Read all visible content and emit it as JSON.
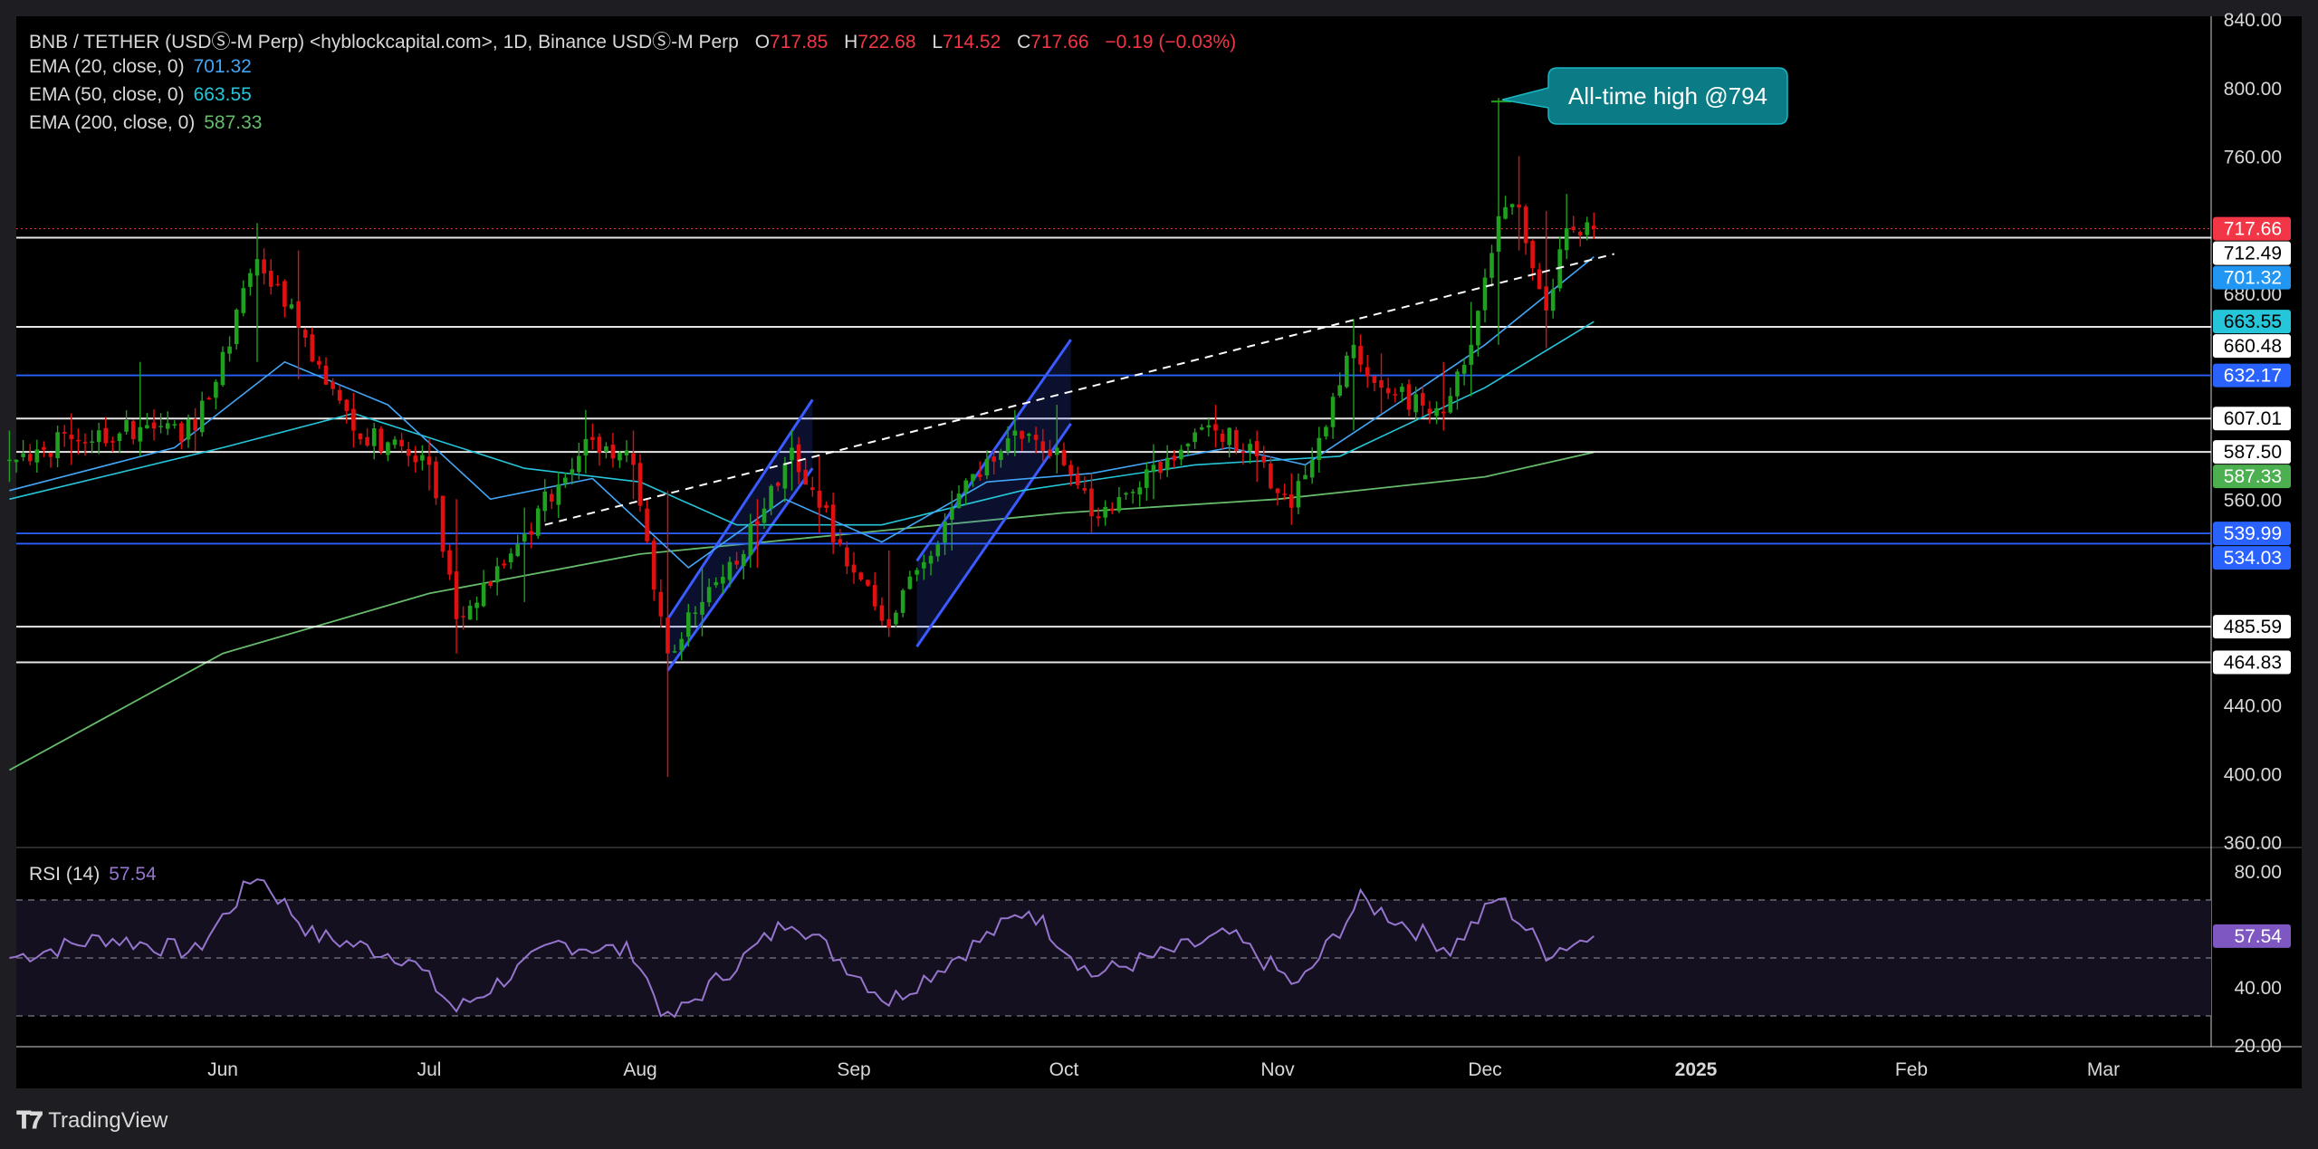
{
  "header": {
    "symbol_line": "BNB / TETHER (USDⓈ-M Perp) <hyblockcapital.com>, 1D, Binance USDⓈ-M Perp",
    "ohlc": [
      {
        "label": "O",
        "value": "717.85"
      },
      {
        "label": "H",
        "value": "722.68"
      },
      {
        "label": "L",
        "value": "714.52"
      },
      {
        "label": "C",
        "value": "717.66"
      }
    ],
    "change": "−0.19 (−0.03%)"
  },
  "indicators": [
    {
      "label": "EMA (20, close, 0)",
      "value": "701.32",
      "color": "#42a5f5"
    },
    {
      "label": "EMA (50, close, 0)",
      "value": "663.55",
      "color": "#26c6da"
    },
    {
      "label": "EMA (200, close, 0)",
      "value": "587.33",
      "color": "#66bb6a"
    }
  ],
  "rsi": {
    "label": "RSI (14)",
    "value": "57.54",
    "color": "#9575cd"
  },
  "annotation": "All-time high @794",
  "footer": {
    "brand": "TradingView"
  },
  "colors": {
    "up": "#1fa01f",
    "down": "#e01010",
    "background": "#000000",
    "pane_bg": "#1e1e22",
    "level_line": "#ffffff",
    "blue_level": "#2962ff",
    "channel": "#3a5bff",
    "annotation_bg": "#0b7c86"
  },
  "chart_data": [
    {
      "type": "candlestick",
      "title": "BNB / TETHER (USDⓈ-M Perp), 1D",
      "x_range": [
        "2024-05-01",
        "2025-03-31"
      ],
      "x_ticks": [
        {
          "label": "Jun",
          "date": "2024-06-01"
        },
        {
          "label": "Jul",
          "date": "2024-07-01"
        },
        {
          "label": "Aug",
          "date": "2024-08-01"
        },
        {
          "label": "Sep",
          "date": "2024-09-01"
        },
        {
          "label": "Oct",
          "date": "2024-10-01"
        },
        {
          "label": "Nov",
          "date": "2024-11-01"
        },
        {
          "label": "Dec",
          "date": "2024-12-01"
        },
        {
          "label": "2025",
          "date": "2025-01-01"
        },
        {
          "label": "Feb",
          "date": "2025-02-01"
        },
        {
          "label": "Mar",
          "date": "2025-03-01"
        }
      ],
      "ylim": [
        360,
        840
      ],
      "y_ticks": [
        360,
        400,
        440,
        480,
        520,
        560,
        600,
        640,
        680,
        720,
        760,
        800,
        840
      ],
      "y_tick_labels": [
        "360.00",
        "400.00",
        "440.00",
        "",
        "",
        "560.00",
        "",
        "",
        "680.00",
        "",
        "760.00",
        "800.00",
        "840.00"
      ],
      "price_keypoints": [
        {
          "date": "2024-05-01",
          "close": 583,
          "low": 570,
          "high": 600
        },
        {
          "date": "2024-05-10",
          "close": 595,
          "low": 580,
          "high": 610
        },
        {
          "date": "2024-05-20",
          "close": 602,
          "low": 585,
          "high": 640
        },
        {
          "date": "2024-05-28",
          "close": 600,
          "low": 588,
          "high": 612
        },
        {
          "date": "2024-06-06",
          "close": 700,
          "low": 640,
          "high": 721
        },
        {
          "date": "2024-06-12",
          "close": 660,
          "low": 630,
          "high": 705
        },
        {
          "date": "2024-06-20",
          "close": 600,
          "low": 590,
          "high": 622
        },
        {
          "date": "2024-07-01",
          "close": 580,
          "low": 565,
          "high": 595
        },
        {
          "date": "2024-07-05",
          "close": 490,
          "low": 470,
          "high": 560
        },
        {
          "date": "2024-07-15",
          "close": 540,
          "low": 500,
          "high": 555
        },
        {
          "date": "2024-07-24",
          "close": 595,
          "low": 575,
          "high": 612
        },
        {
          "date": "2024-07-31",
          "close": 580,
          "low": 560,
          "high": 600
        },
        {
          "date": "2024-08-05",
          "close": 470,
          "low": 398,
          "high": 565
        },
        {
          "date": "2024-08-10",
          "close": 500,
          "low": 480,
          "high": 520
        },
        {
          "date": "2024-08-18",
          "close": 545,
          "low": 520,
          "high": 560
        },
        {
          "date": "2024-08-23",
          "close": 590,
          "low": 565,
          "high": 600
        },
        {
          "date": "2024-08-27",
          "close": 555,
          "low": 540,
          "high": 585
        },
        {
          "date": "2024-09-06",
          "close": 485,
          "low": 480,
          "high": 530
        },
        {
          "date": "2024-09-15",
          "close": 555,
          "low": 530,
          "high": 565
        },
        {
          "date": "2024-09-24",
          "close": 600,
          "low": 585,
          "high": 612
        },
        {
          "date": "2024-09-30",
          "close": 590,
          "low": 575,
          "high": 615
        },
        {
          "date": "2024-10-05",
          "close": 550,
          "low": 540,
          "high": 575
        },
        {
          "date": "2024-10-14",
          "close": 580,
          "low": 560,
          "high": 592
        },
        {
          "date": "2024-10-23",
          "close": 600,
          "low": 590,
          "high": 615
        },
        {
          "date": "2024-10-29",
          "close": 585,
          "low": 570,
          "high": 600
        },
        {
          "date": "2024-11-03",
          "close": 555,
          "low": 545,
          "high": 575
        },
        {
          "date": "2024-11-12",
          "close": 650,
          "low": 600,
          "high": 665
        },
        {
          "date": "2024-11-16",
          "close": 625,
          "low": 610,
          "high": 645
        },
        {
          "date": "2024-11-25",
          "close": 610,
          "low": 600,
          "high": 640
        },
        {
          "date": "2024-11-29",
          "close": 650,
          "low": 620,
          "high": 675
        },
        {
          "date": "2024-12-03",
          "close": 725,
          "low": 650,
          "high": 794
        },
        {
          "date": "2024-12-06",
          "close": 730,
          "low": 705,
          "high": 760
        },
        {
          "date": "2024-12-10",
          "close": 670,
          "low": 648,
          "high": 728
        },
        {
          "date": "2024-12-13",
          "close": 718,
          "low": 700,
          "high": 738
        },
        {
          "date": "2024-12-17",
          "close": 717.66,
          "low": 714.52,
          "high": 722.68
        }
      ],
      "ema": [
        {
          "name": "EMA (20, close, 0)",
          "points": [
            [
              "2024-05-01",
              565
            ],
            [
              "2024-05-25",
              590
            ],
            [
              "2024-06-10",
              640
            ],
            [
              "2024-06-25",
              615
            ],
            [
              "2024-07-10",
              560
            ],
            [
              "2024-07-25",
              572
            ],
            [
              "2024-08-08",
              520
            ],
            [
              "2024-08-22",
              560
            ],
            [
              "2024-09-05",
              535
            ],
            [
              "2024-09-20",
              570
            ],
            [
              "2024-10-05",
              575
            ],
            [
              "2024-10-25",
              590
            ],
            [
              "2024-11-05",
              580
            ],
            [
              "2024-11-20",
              620
            ],
            [
              "2024-12-01",
              650
            ],
            [
              "2024-12-17",
              701.32
            ]
          ]
        },
        {
          "name": "EMA (50, close, 0)",
          "points": [
            [
              "2024-05-01",
              560
            ],
            [
              "2024-06-01",
              590
            ],
            [
              "2024-06-20",
              610
            ],
            [
              "2024-07-15",
              578
            ],
            [
              "2024-08-01",
              570
            ],
            [
              "2024-08-15",
              545
            ],
            [
              "2024-09-05",
              545
            ],
            [
              "2024-09-25",
              565
            ],
            [
              "2024-10-20",
              580
            ],
            [
              "2024-11-10",
              585
            ],
            [
              "2024-12-01",
              625
            ],
            [
              "2024-12-17",
              663.55
            ]
          ]
        },
        {
          "name": "EMA (200, close, 0)",
          "points": [
            [
              "2024-05-01",
              402
            ],
            [
              "2024-06-01",
              470
            ],
            [
              "2024-07-01",
              505
            ],
            [
              "2024-08-01",
              528
            ],
            [
              "2024-09-01",
              540
            ],
            [
              "2024-10-01",
              552
            ],
            [
              "2024-11-01",
              560
            ],
            [
              "2024-12-01",
              573
            ],
            [
              "2024-12-17",
              587.33
            ]
          ]
        }
      ],
      "horizontal_levels": [
        {
          "value": 712.49,
          "label": "712.49",
          "color": "#ffffff"
        },
        {
          "value": 660.48,
          "label": "660.48",
          "color": "#ffffff"
        },
        {
          "value": 632.17,
          "label": "632.17",
          "color": "#2962ff"
        },
        {
          "value": 607.01,
          "label": "607.01",
          "color": "#ffffff"
        },
        {
          "value": 587.5,
          "label": "587.50",
          "color": "#ffffff"
        },
        {
          "value": 539.99,
          "label": "539.99",
          "color": "#2962ff"
        },
        {
          "value": 534.03,
          "label": "534.03",
          "color": "#2962ff"
        },
        {
          "value": 485.59,
          "label": "485.59",
          "color": "#ffffff"
        },
        {
          "value": 464.83,
          "label": "464.83",
          "color": "#ffffff"
        }
      ],
      "price_labels": [
        {
          "value": 717.66,
          "label": "717.66",
          "bg": "#f23645",
          "fg": "#ffffff"
        },
        {
          "value": 712.49,
          "label": "712.49",
          "bg": "#ffffff",
          "fg": "#000000"
        },
        {
          "value": 701.32,
          "label": "701.32",
          "bg": "#2196f3",
          "fg": "#ffffff"
        },
        {
          "value": 663.55,
          "label": "663.55",
          "bg": "#26c6da",
          "fg": "#000000"
        },
        {
          "value": 660.48,
          "label": "660.48",
          "bg": "#ffffff",
          "fg": "#000000"
        },
        {
          "value": 632.17,
          "label": "632.17",
          "bg": "#2962ff",
          "fg": "#ffffff"
        },
        {
          "value": 607.01,
          "label": "607.01",
          "bg": "#ffffff",
          "fg": "#000000"
        },
        {
          "value": 587.5,
          "label": "587.50",
          "bg": "#ffffff",
          "fg": "#000000"
        },
        {
          "value": 587.33,
          "label": "587.33",
          "bg": "#4caf50",
          "fg": "#ffffff"
        },
        {
          "value": 539.99,
          "label": "539.99",
          "bg": "#2962ff",
          "fg": "#ffffff"
        },
        {
          "value": 534.03,
          "label": "534.03",
          "bg": "#2962ff",
          "fg": "#ffffff"
        },
        {
          "value": 485.59,
          "label": "485.59",
          "bg": "#ffffff",
          "fg": "#000000"
        },
        {
          "value": 464.83,
          "label": "464.83",
          "bg": "#ffffff",
          "fg": "#000000"
        }
      ],
      "trendline": {
        "style": "dashed",
        "from": [
          "2024-07-18",
          545
        ],
        "to": [
          "2024-12-20",
          703
        ]
      },
      "channels": [
        {
          "upper": [
            [
              "2024-08-05",
              490
            ],
            [
              "2024-08-26",
              618
            ]
          ],
          "lower": [
            [
              "2024-08-05",
              460
            ],
            [
              "2024-08-26",
              578
            ]
          ]
        },
        {
          "upper": [
            [
              "2024-09-10",
              524
            ],
            [
              "2024-10-02",
              653
            ]
          ],
          "lower": [
            [
              "2024-09-10",
              474
            ],
            [
              "2024-10-02",
              604
            ]
          ]
        }
      ],
      "ath": {
        "date": "2024-12-03",
        "value": 794
      }
    },
    {
      "type": "line",
      "title": "RSI (14)",
      "ylim": [
        20,
        80
      ],
      "y_ticks": [
        20,
        40,
        60,
        80
      ],
      "y_tick_labels": [
        "20.00",
        "40.00",
        "",
        "80.00"
      ],
      "bands": [
        70,
        50,
        30
      ],
      "series": [
        {
          "name": "RSI (14)",
          "points": [
            [
              "2024-05-01",
              50
            ],
            [
              "2024-05-15",
              57
            ],
            [
              "2024-05-28",
              52
            ],
            [
              "2024-06-06",
              79
            ],
            [
              "2024-06-14",
              58
            ],
            [
              "2024-06-28",
              50
            ],
            [
              "2024-07-05",
              32
            ],
            [
              "2024-07-20",
              55
            ],
            [
              "2024-07-31",
              52
            ],
            [
              "2024-08-05",
              28
            ],
            [
              "2024-08-20",
              58
            ],
            [
              "2024-08-23",
              64
            ],
            [
              "2024-09-06",
              35
            ],
            [
              "2024-09-26",
              67
            ],
            [
              "2024-10-05",
              44
            ],
            [
              "2024-10-25",
              58
            ],
            [
              "2024-11-04",
              40
            ],
            [
              "2024-11-13",
              70
            ],
            [
              "2024-11-26",
              53
            ],
            [
              "2024-12-03",
              71
            ],
            [
              "2024-12-10",
              52
            ],
            [
              "2024-12-17",
              57.54
            ]
          ]
        }
      ]
    }
  ]
}
